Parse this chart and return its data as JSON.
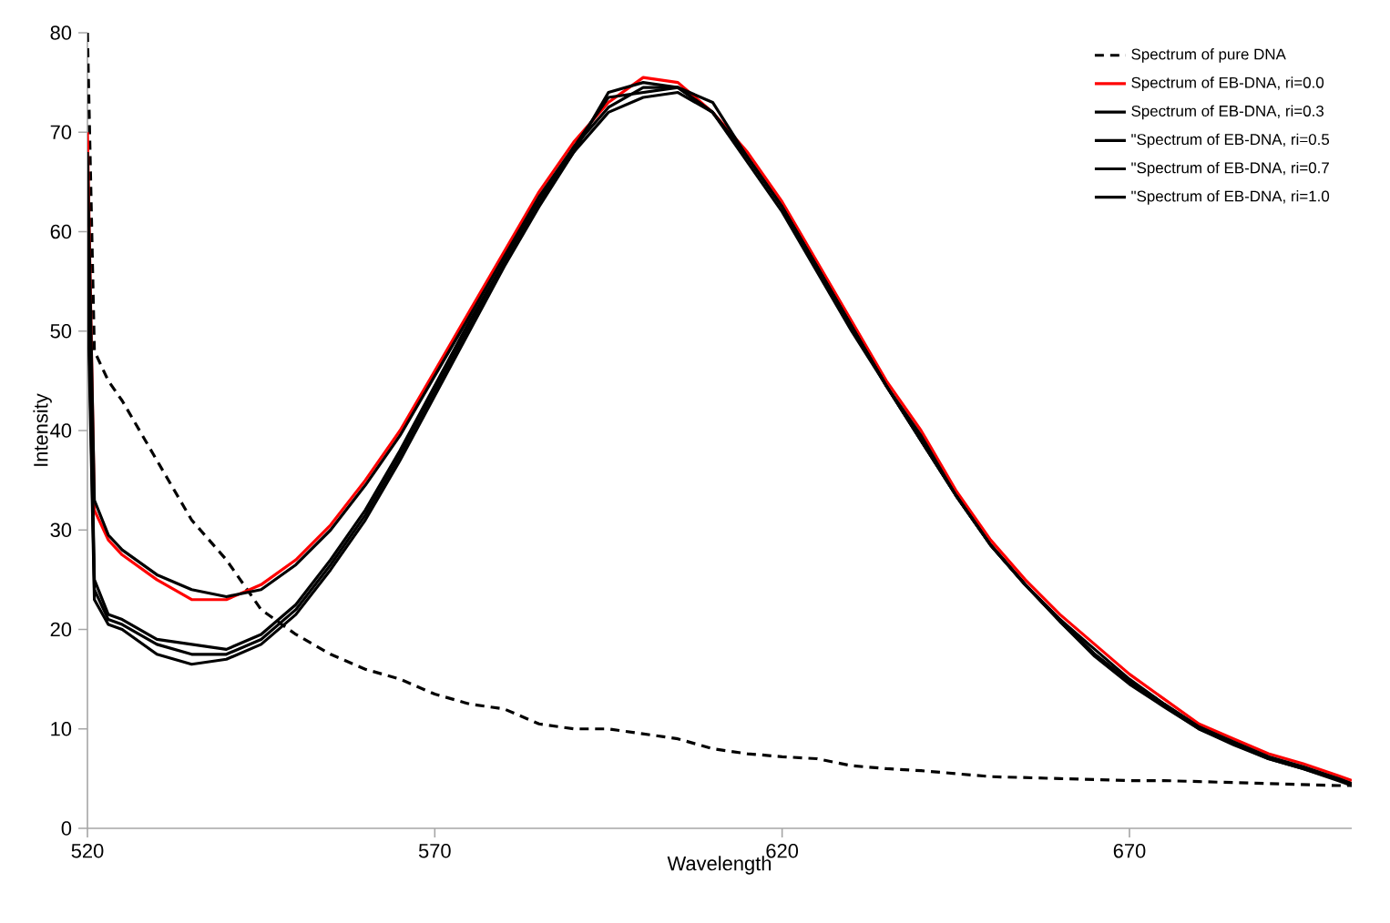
{
  "chart_data": {
    "type": "line",
    "xlabel": "Wavelength",
    "ylabel": "Intensity",
    "xlim": [
      520,
      702
    ],
    "xticks": [
      520,
      570,
      620,
      670
    ],
    "ylim": [
      0,
      80
    ],
    "yticks": [
      0,
      10,
      20,
      30,
      40,
      50,
      60,
      70,
      80
    ],
    "grid": false,
    "legend": "top right",
    "marker": "none",
    "x": [
      520,
      521,
      523,
      525,
      530,
      535,
      540,
      545,
      550,
      555,
      560,
      565,
      570,
      575,
      580,
      585,
      590,
      595,
      600,
      605,
      610,
      615,
      620,
      625,
      630,
      635,
      640,
      645,
      650,
      655,
      660,
      665,
      670,
      675,
      680,
      685,
      690,
      695,
      700,
      702
    ],
    "series": [
      {
        "name": "Spectrum of pure DNA",
        "color": "#000000",
        "line_style": "dashed",
        "values": [
          80,
          48,
          45,
          43,
          37,
          31,
          27,
          22,
          19.5,
          17.5,
          16,
          15,
          13.5,
          12.5,
          12,
          10.5,
          10,
          10,
          9.5,
          9,
          8,
          7.5,
          7.2,
          7,
          6.3,
          6,
          5.8,
          5.5,
          5.2,
          5.1,
          5,
          4.9,
          4.8,
          4.8,
          4.7,
          4.6,
          4.5,
          4.4,
          4.3,
          4.3
        ]
      },
      {
        "name": "Spectrum of EB-DNA, ri=0.0",
        "color": "#ff0000",
        "line_style": "solid",
        "values": [
          70,
          32,
          29,
          27.5,
          25,
          23,
          23,
          24.5,
          27,
          30.5,
          35,
          40,
          46,
          52,
          58,
          64,
          69,
          73,
          75.5,
          75,
          72,
          68,
          63,
          57,
          51,
          45,
          40,
          34,
          29,
          25,
          21.5,
          18.5,
          15.5,
          13,
          10.5,
          9,
          7.5,
          6.5,
          5.3,
          4.8
        ]
      },
      {
        "name": "Spectrum of EB-DNA, ri=0.3",
        "color": "#000000",
        "line_style": "solid",
        "values": [
          68,
          33,
          29.5,
          28,
          25.5,
          24,
          23.3,
          24,
          26.5,
          30,
          34.5,
          39.5,
          45.5,
          51.5,
          57.5,
          63.5,
          68.5,
          72.5,
          74.5,
          74.5,
          72,
          67.5,
          62.5,
          56.5,
          50.5,
          44.5,
          39.5,
          33.5,
          28.5,
          24.5,
          21,
          18,
          15,
          12.5,
          10.2,
          8.7,
          7.2,
          6.2,
          5,
          4.5
        ]
      },
      {
        "name": "\"Spectrum of EB-DNA, ri=0.5",
        "color": "#000000",
        "line_style": "solid",
        "values": [
          60,
          25,
          21.5,
          21,
          19,
          18.5,
          18,
          19.5,
          22.5,
          27,
          32,
          38,
          44.5,
          51,
          57,
          63,
          68.5,
          73.5,
          74,
          74.5,
          72,
          67.5,
          62.5,
          56.5,
          50.5,
          44.5,
          39,
          33.5,
          28.5,
          24.5,
          21,
          17.5,
          14.8,
          12.5,
          10.2,
          8.6,
          7.1,
          6.1,
          5,
          4.5
        ]
      },
      {
        "name": "\"Spectrum of EB-DNA, ri=0.7",
        "color": "#000000",
        "line_style": "solid",
        "values": [
          58,
          24,
          21,
          20.5,
          18.5,
          17.5,
          17.5,
          19,
          22,
          26.5,
          31.5,
          37.5,
          44,
          50.5,
          57,
          63,
          68,
          72,
          73.5,
          74,
          72,
          67,
          62,
          56,
          50,
          44.5,
          39,
          33.5,
          28.5,
          24.5,
          20.8,
          17.5,
          14.7,
          12.3,
          10,
          8.5,
          7,
          6,
          4.9,
          4.4
        ]
      },
      {
        "name": "\"Spectrum of EB-DNA, ri=1.0",
        "color": "#000000",
        "line_style": "solid",
        "values": [
          55,
          23,
          20.5,
          20,
          17.5,
          16.5,
          17,
          18.5,
          21.5,
          26,
          31,
          37,
          43.5,
          50,
          56.5,
          62.5,
          68,
          74,
          75,
          74.5,
          73,
          67.5,
          62.5,
          56.5,
          50.5,
          44.5,
          39,
          33.5,
          28.5,
          24.5,
          20.8,
          17.3,
          14.5,
          12.2,
          10,
          8.4,
          7,
          6,
          4.8,
          4.3
        ]
      }
    ]
  }
}
